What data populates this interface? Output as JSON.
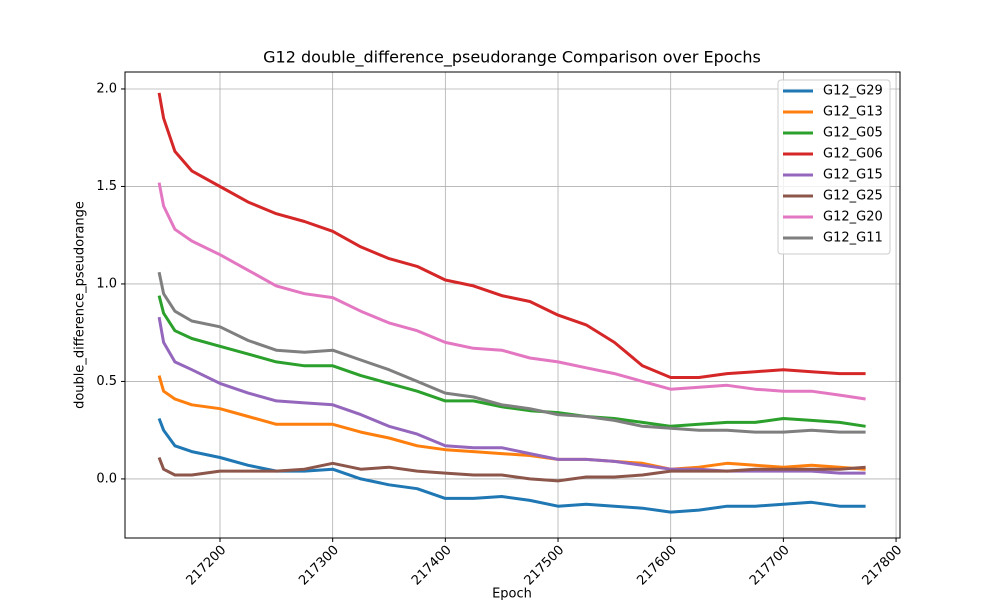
{
  "chart_data": {
    "type": "line",
    "title": "G12 double_difference_pseudorange Comparison over Epochs",
    "x_label": "Epoch",
    "y_label": "double_difference_pseudorange",
    "grid": true,
    "legend": "upper right",
    "xlim": [
      217115.7,
      217803.5
    ],
    "ylim": [
      -0.303,
      2.087
    ],
    "xticks": [
      217200,
      217300,
      217400,
      217500,
      217600,
      217700,
      217800
    ],
    "yticks": [
      {
        "value": 0,
        "label": "0.0"
      },
      0.5,
      {
        "value": 1,
        "label": "1.0"
      },
      1.5,
      {
        "value": 2,
        "label": "2.0"
      }
    ],
    "x": [
      217146,
      217150,
      217160,
      217175,
      217200,
      217225,
      217250,
      217275,
      217300,
      217325,
      217350,
      217375,
      217400,
      217425,
      217450,
      217475,
      217500,
      217525,
      217550,
      217575,
      217600,
      217625,
      217650,
      217675,
      217700,
      217725,
      217750,
      217773
    ],
    "series": [
      {
        "name": "G12_G29",
        "color": "#1f77b4",
        "values": [
          0.31,
          0.25,
          0.17,
          0.14,
          0.11,
          0.07,
          0.04,
          0.04,
          0.05,
          0.0,
          -0.03,
          -0.05,
          -0.1,
          -0.1,
          -0.09,
          -0.11,
          -0.14,
          -0.13,
          -0.14,
          -0.15,
          -0.17,
          -0.16,
          -0.14,
          -0.14,
          -0.13,
          -0.12,
          -0.14,
          -0.14
        ]
      },
      {
        "name": "G12_G13",
        "color": "#ff7f0e",
        "values": [
          0.53,
          0.45,
          0.41,
          0.38,
          0.36,
          0.32,
          0.28,
          0.28,
          0.28,
          0.24,
          0.21,
          0.17,
          0.15,
          0.14,
          0.13,
          0.12,
          0.1,
          0.1,
          0.09,
          0.08,
          0.05,
          0.06,
          0.08,
          0.07,
          0.06,
          0.07,
          0.06,
          0.05
        ]
      },
      {
        "name": "G12_G05",
        "color": "#2ca02c",
        "values": [
          0.94,
          0.85,
          0.76,
          0.72,
          0.68,
          0.64,
          0.6,
          0.58,
          0.58,
          0.53,
          0.49,
          0.45,
          0.4,
          0.4,
          0.37,
          0.35,
          0.34,
          0.32,
          0.31,
          0.29,
          0.27,
          0.28,
          0.29,
          0.29,
          0.31,
          0.3,
          0.29,
          0.27
        ]
      },
      {
        "name": "G12_G06",
        "color": "#d62728",
        "values": [
          1.98,
          1.85,
          1.68,
          1.58,
          1.5,
          1.42,
          1.36,
          1.32,
          1.27,
          1.19,
          1.13,
          1.09,
          1.02,
          0.99,
          0.94,
          0.91,
          0.84,
          0.79,
          0.7,
          0.58,
          0.52,
          0.52,
          0.54,
          0.55,
          0.56,
          0.55,
          0.54,
          0.54
        ]
      },
      {
        "name": "G12_G15",
        "color": "#9467bd",
        "values": [
          0.83,
          0.7,
          0.6,
          0.56,
          0.49,
          0.44,
          0.4,
          0.39,
          0.38,
          0.33,
          0.27,
          0.23,
          0.17,
          0.16,
          0.16,
          0.13,
          0.1,
          0.1,
          0.09,
          0.07,
          0.05,
          0.05,
          0.04,
          0.04,
          0.04,
          0.04,
          0.03,
          0.03
        ]
      },
      {
        "name": "G12_G25",
        "color": "#8c564b",
        "values": [
          0.11,
          0.05,
          0.02,
          0.02,
          0.04,
          0.04,
          0.04,
          0.05,
          0.08,
          0.05,
          0.06,
          0.04,
          0.03,
          0.02,
          0.02,
          0.0,
          -0.01,
          0.01,
          0.01,
          0.02,
          0.04,
          0.04,
          0.04,
          0.05,
          0.05,
          0.05,
          0.05,
          0.06
        ]
      },
      {
        "name": "G12_G20",
        "color": "#e377c2",
        "values": [
          1.52,
          1.4,
          1.28,
          1.22,
          1.15,
          1.07,
          0.99,
          0.95,
          0.93,
          0.86,
          0.8,
          0.76,
          0.7,
          0.67,
          0.66,
          0.62,
          0.6,
          0.57,
          0.54,
          0.5,
          0.46,
          0.47,
          0.48,
          0.46,
          0.45,
          0.45,
          0.43,
          0.41
        ]
      },
      {
        "name": "G12_G11",
        "color": "#7f7f7f",
        "values": [
          1.06,
          0.95,
          0.86,
          0.81,
          0.78,
          0.71,
          0.66,
          0.65,
          0.66,
          0.61,
          0.56,
          0.5,
          0.44,
          0.42,
          0.38,
          0.36,
          0.33,
          0.32,
          0.3,
          0.27,
          0.26,
          0.25,
          0.25,
          0.24,
          0.24,
          0.25,
          0.24,
          0.24
        ]
      }
    ]
  }
}
